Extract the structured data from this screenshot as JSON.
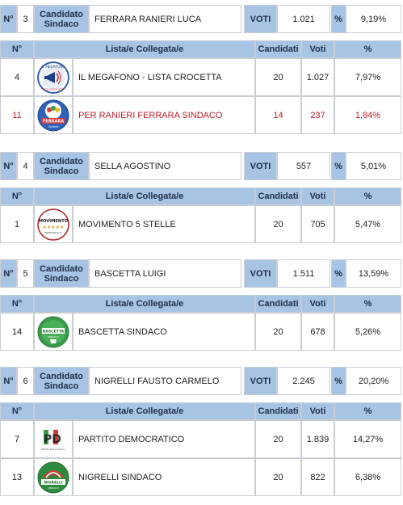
{
  "labels": {
    "num": "N°",
    "candidato_line1": "Candidato",
    "candidato_line2": "Sindaco",
    "voti_caps": "VOTI",
    "pct": "%",
    "lista": "Lista/e Collegata/e",
    "candidati": "Candidati",
    "voti": "Voti"
  },
  "candidates": [
    {
      "num": "3",
      "name": "FERRARA RANIERI LUCA",
      "votes": "1.021",
      "pct": "9,19%",
      "lists": [
        {
          "num": "4",
          "name": "IL MEGAFONO - LISTA CROCETTA",
          "candidati": "20",
          "voti": "1.027",
          "pct": "7,97%",
          "logo": "megafono-logo",
          "highlight": false
        },
        {
          "num": "11",
          "name": "PER RANIERI FERRARA SINDACO",
          "candidati": "14",
          "voti": "237",
          "pct": "1,84%",
          "logo": "ferrara-logo",
          "highlight": true,
          "highlight_color": "#c0202a"
        }
      ]
    },
    {
      "num": "4",
      "name": "SELLA AGOSTINO",
      "votes": "557",
      "pct": "5,01%",
      "lists": [
        {
          "num": "1",
          "name": "MOVIMENTO 5 STELLE",
          "candidati": "20",
          "voti": "705",
          "pct": "5,47%",
          "logo": "m5s-logo",
          "highlight": false
        }
      ]
    },
    {
      "num": "5",
      "name": "BASCETTA LUIGI",
      "votes": "1.511",
      "pct": "13,59%",
      "lists": [
        {
          "num": "14",
          "name": "BASCETTA SINDACO",
          "candidati": "20",
          "voti": "678",
          "pct": "5,26%",
          "logo": "bascetta-logo",
          "highlight": false
        }
      ]
    },
    {
      "num": "6",
      "name": "NIGRELLI FAUSTO CARMELO",
      "votes": "2.245",
      "pct": "20,20%",
      "lists": [
        {
          "num": "7",
          "name": "PARTITO DEMOCRATICO",
          "candidati": "20",
          "voti": "1.839",
          "pct": "14,27%",
          "logo": "pd-logo",
          "highlight": false
        },
        {
          "num": "13",
          "name": "NIGRELLI SINDACO",
          "candidati": "20",
          "voti": "822",
          "pct": "6,38%",
          "logo": "nigrelli-logo",
          "highlight": false
        }
      ]
    }
  ],
  "colors": {
    "header_blue": "#a8c4e4",
    "border": "#c8cdd4",
    "highlight_red": "#c0202a"
  },
  "logo_text": {
    "megafono_top": "IL MEGAFONO",
    "megafono_bottom": "LISTA CROCETTA",
    "ferrara": "FERRARA",
    "ferrara_sub": "Sindaco",
    "m5s": "MOVIMENTO",
    "m5s_sub": "BEPPEGRILLO.IT",
    "bascetta": "BASCETTA",
    "bascetta_sub": "SINDACO",
    "pd": "PD",
    "pd_sub": "Partito Democratico",
    "nigrelli": "NIGRELLI",
    "nigrelli_sub": "SINDACO"
  }
}
